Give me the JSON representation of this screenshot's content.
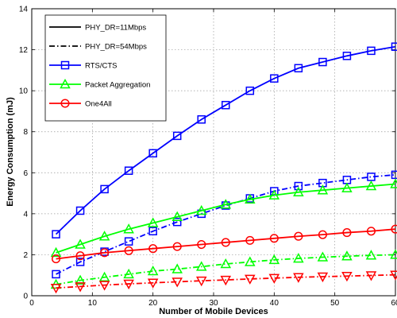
{
  "chart_data": {
    "type": "line",
    "xlabel": "Number of Mobile Devices",
    "ylabel": "Energy Consumption (mJ)",
    "xlim": [
      0,
      60
    ],
    "ylim": [
      0,
      14
    ],
    "xticks": [
      0,
      10,
      20,
      30,
      40,
      50,
      60
    ],
    "yticks": [
      0,
      2,
      4,
      6,
      8,
      10,
      12,
      14
    ],
    "grid": true,
    "legend_position": "top-left",
    "legend": [
      {
        "label": "PHY_DR=11Mbps",
        "color": "#000000",
        "style": "solid",
        "marker": "none"
      },
      {
        "label": "PHY_DR=54Mbps",
        "color": "#000000",
        "style": "dashdot",
        "marker": "none"
      },
      {
        "label": "RTS/CTS",
        "color": "#0000ff",
        "style": "solid",
        "marker": "square"
      },
      {
        "label": "Packet Aggregation",
        "color": "#00ff00",
        "style": "solid",
        "marker": "triangle"
      },
      {
        "label": "One4All",
        "color": "#ff0000",
        "style": "solid",
        "marker": "circle"
      }
    ],
    "x": [
      4,
      8,
      12,
      16,
      20,
      24,
      28,
      32,
      36,
      40,
      44,
      48,
      52,
      56,
      60
    ],
    "series": [
      {
        "name": "RTS/CTS",
        "rate": "11Mbps",
        "color": "#0000ff",
        "style": "solid",
        "marker": "square",
        "values": [
          3.0,
          4.15,
          5.2,
          6.1,
          6.95,
          7.8,
          8.6,
          9.3,
          10.0,
          10.6,
          11.1,
          11.4,
          11.7,
          11.95,
          12.15
        ]
      },
      {
        "name": "RTS/CTS",
        "rate": "54Mbps",
        "color": "#0000ff",
        "style": "dashdot",
        "marker": "square",
        "values": [
          1.05,
          1.65,
          2.15,
          2.65,
          3.15,
          3.6,
          4.0,
          4.4,
          4.75,
          5.1,
          5.35,
          5.5,
          5.65,
          5.8,
          5.9
        ]
      },
      {
        "name": "Packet Aggregation",
        "rate": "11Mbps",
        "color": "#00ff00",
        "style": "solid",
        "marker": "triangle",
        "values": [
          2.1,
          2.5,
          2.9,
          3.25,
          3.55,
          3.85,
          4.15,
          4.45,
          4.7,
          4.9,
          5.05,
          5.15,
          5.25,
          5.35,
          5.45
        ]
      },
      {
        "name": "Packet Aggregation",
        "rate": "54Mbps",
        "color": "#00ff00",
        "style": "dashdot",
        "marker": "triangle",
        "values": [
          0.55,
          0.75,
          0.9,
          1.05,
          1.2,
          1.3,
          1.42,
          1.55,
          1.65,
          1.75,
          1.82,
          1.88,
          1.93,
          1.97,
          2.0
        ]
      },
      {
        "name": "One4All",
        "rate": "11Mbps",
        "color": "#ff0000",
        "style": "solid",
        "marker": "circle",
        "values": [
          1.8,
          1.95,
          2.1,
          2.2,
          2.3,
          2.4,
          2.5,
          2.6,
          2.7,
          2.8,
          2.9,
          2.98,
          3.08,
          3.15,
          3.25
        ]
      },
      {
        "name": "One4All",
        "rate": "54Mbps",
        "color": "#ff0000",
        "style": "dashdot",
        "marker": "triangle-down",
        "values": [
          0.38,
          0.45,
          0.52,
          0.58,
          0.63,
          0.68,
          0.73,
          0.77,
          0.82,
          0.86,
          0.9,
          0.93,
          0.96,
          0.99,
          1.02
        ]
      }
    ]
  }
}
